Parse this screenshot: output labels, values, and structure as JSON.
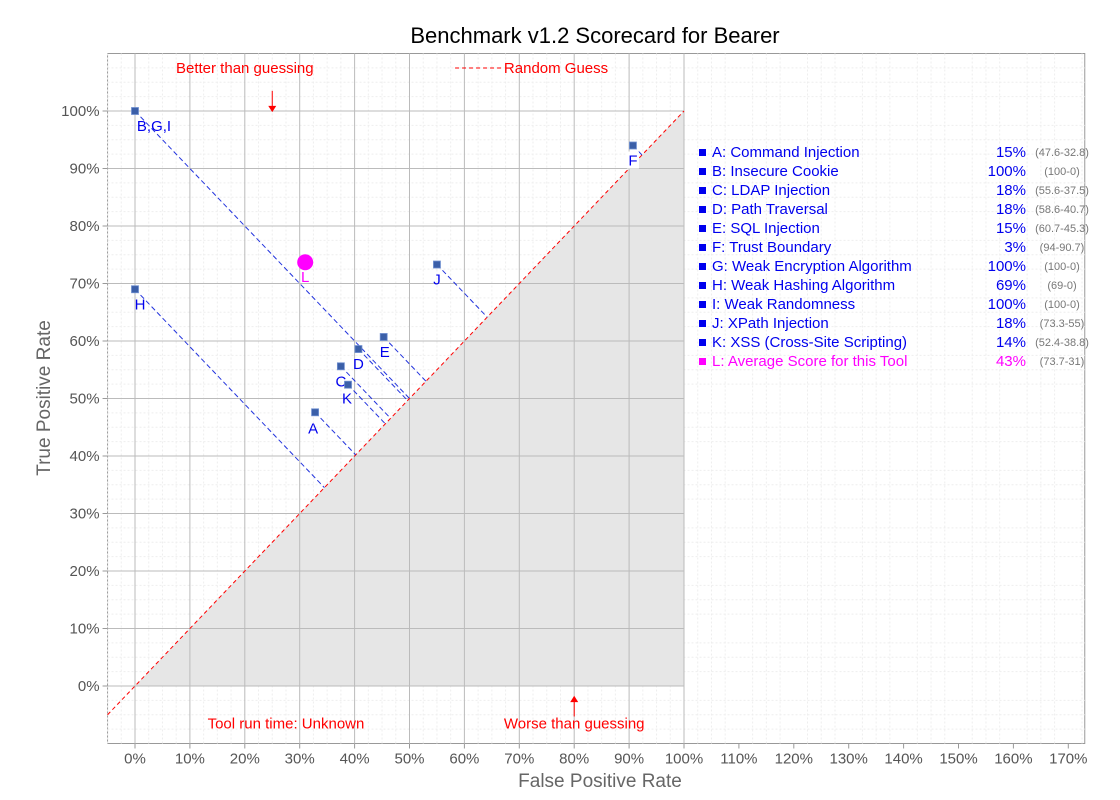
{
  "chart_data": {
    "type": "scatter",
    "title": "Benchmark v1.2 Scorecard for Bearer",
    "xlabel": "False Positive Rate",
    "ylabel": "True Positive Rate",
    "xlim": [
      -5,
      173
    ],
    "ylim": [
      -10,
      110
    ],
    "x_ticks": [
      "0%",
      "10%",
      "20%",
      "30%",
      "40%",
      "50%",
      "60%",
      "70%",
      "80%",
      "90%",
      "100%",
      "110%",
      "120%",
      "130%",
      "140%",
      "150%",
      "160%",
      "170%"
    ],
    "y_ticks": [
      "0%",
      "10%",
      "20%",
      "30%",
      "40%",
      "50%",
      "60%",
      "70%",
      "80%",
      "90%",
      "100%"
    ],
    "grid": true,
    "colors": {
      "points": "#3b5fa8",
      "label": "#0000ee",
      "average": "#ff00ff",
      "reference": "#ff0000",
      "shade": "#e6e6e6"
    },
    "annotations": {
      "better": "Better than guessing",
      "worse": "Worse than guessing",
      "random": "Random Guess",
      "runtime": "Tool run time: Unknown"
    },
    "points": [
      {
        "label": "B,G,I",
        "fpr": 0,
        "tpr": 100
      },
      {
        "label": "H",
        "fpr": 0,
        "tpr": 69
      },
      {
        "label": "A",
        "fpr": 32.8,
        "tpr": 47.6
      },
      {
        "label": "C",
        "fpr": 37.5,
        "tpr": 55.6
      },
      {
        "label": "K",
        "fpr": 38.8,
        "tpr": 52.4
      },
      {
        "label": "D",
        "fpr": 40.7,
        "tpr": 58.6
      },
      {
        "label": "E",
        "fpr": 45.3,
        "tpr": 60.7
      },
      {
        "label": "J",
        "fpr": 55,
        "tpr": 73.3
      },
      {
        "label": "F",
        "fpr": 90.7,
        "tpr": 94
      },
      {
        "label": "L",
        "fpr": 31,
        "tpr": 73.7,
        "average": true
      }
    ],
    "legend": [
      {
        "text": "A: Command Injection",
        "score": "15%",
        "range": "(47.6-32.8)"
      },
      {
        "text": "B: Insecure Cookie",
        "score": "100%",
        "range": "(100-0)"
      },
      {
        "text": "C: LDAP Injection",
        "score": "18%",
        "range": "(55.6-37.5)"
      },
      {
        "text": "D: Path Traversal",
        "score": "18%",
        "range": "(58.6-40.7)"
      },
      {
        "text": "E: SQL Injection",
        "score": "15%",
        "range": "(60.7-45.3)"
      },
      {
        "text": "F: Trust Boundary",
        "score": "3%",
        "range": "(94-90.7)"
      },
      {
        "text": "G: Weak Encryption Algorithm",
        "score": "100%",
        "range": "(100-0)"
      },
      {
        "text": "H: Weak Hashing Algorithm",
        "score": "69%",
        "range": "(69-0)"
      },
      {
        "text": "I:   Weak Randomness",
        "score": "100%",
        "range": "(100-0)"
      },
      {
        "text": "J:  XPath Injection",
        "score": "18%",
        "range": "(73.3-55)"
      },
      {
        "text": "K: XSS (Cross-Site Scripting)",
        "score": "14%",
        "range": "(52.4-38.8)"
      },
      {
        "text": "L: Average Score for this Tool",
        "score": "43%",
        "range": "(73.7-31)",
        "average": true
      }
    ]
  }
}
